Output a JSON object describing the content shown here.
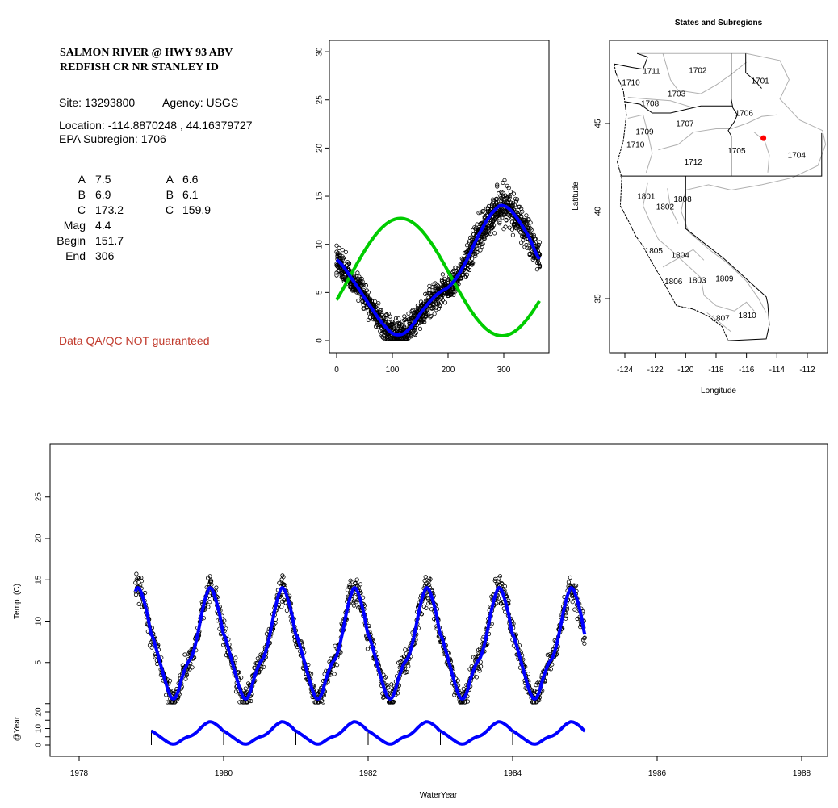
{
  "site_info": {
    "title_line1": "SALMON RIVER @ HWY 93 ABV",
    "title_line2": "REDFISH CR NR STANLEY ID",
    "site": "Site: 13293800",
    "agency": "Agency: USGS",
    "location": "Location: -114.8870248 , 44.16379727",
    "subregion": "EPA Subregion: 1706",
    "params_left": [
      {
        "label": "A",
        "value": "7.5"
      },
      {
        "label": "B",
        "value": "6.9"
      },
      {
        "label": "C",
        "value": "173.2"
      },
      {
        "label": "Mag",
        "value": "4.4"
      },
      {
        "label": "Begin",
        "value": "151.7"
      },
      {
        "label": "End",
        "value": "306"
      }
    ],
    "params_right": [
      {
        "label": "A",
        "value": "6.6"
      },
      {
        "label": "B",
        "value": "6.1"
      },
      {
        "label": "C",
        "value": "159.9"
      }
    ],
    "qa_note": "Data QA/QC NOT guaranteed",
    "qa_color": "#c0392b"
  },
  "chart_data": [
    {
      "id": "seasonal",
      "type": "scatter",
      "title": "",
      "xlabel": "",
      "ylabel": "",
      "xlim": [
        0,
        365
      ],
      "ylim": [
        0,
        31
      ],
      "xticks": [
        "0",
        "100",
        "200",
        "300"
      ],
      "yticks": [
        "0",
        "5",
        "10",
        "15",
        "20",
        "25",
        "30"
      ],
      "grid": false,
      "point_style": "open-circle black",
      "smooth_curve": {
        "color": "#0000ff",
        "day": [
          0,
          30,
          60,
          90,
          110,
          130,
          155,
          180,
          205,
          230,
          260,
          285,
          300,
          320,
          345,
          365
        ],
        "temp": [
          8.4,
          6.2,
          3.6,
          1.3,
          0.6,
          1.2,
          3.2,
          4.8,
          5.8,
          8.0,
          11.5,
          13.6,
          14.0,
          13.0,
          10.8,
          8.4
        ]
      },
      "sine_fit": {
        "color": "#00cc00",
        "mean": 6.6,
        "amplitude": 6.1,
        "peak_day": 297
      }
    },
    {
      "id": "map",
      "type": "map",
      "title": "States and Subregions",
      "xlabel": "Longitude",
      "ylabel": "Latitude",
      "xlim": [
        -125,
        -110.7
      ],
      "ylim": [
        32.2,
        49.8
      ],
      "xticks": [
        "-124",
        "-122",
        "-120",
        "-118",
        "-116",
        "-114",
        "-112"
      ],
      "yticks": [
        "35",
        "40",
        "45"
      ],
      "site_point": {
        "lon": -114.887,
        "lat": 44.164,
        "color": "#ff0000"
      },
      "regions": [
        {
          "name": "1711",
          "lon": -122.25,
          "lat": 48.0
        },
        {
          "name": "1710",
          "lon": -123.6,
          "lat": 47.35
        },
        {
          "name": "1702",
          "lon": -119.2,
          "lat": 48.05
        },
        {
          "name": "1701",
          "lon": -115.1,
          "lat": 47.45
        },
        {
          "name": "1703",
          "lon": -120.6,
          "lat": 46.7
        },
        {
          "name": "1708",
          "lon": -122.35,
          "lat": 46.15
        },
        {
          "name": "1706",
          "lon": -116.15,
          "lat": 45.6
        },
        {
          "name": "1707",
          "lon": -120.05,
          "lat": 45.0
        },
        {
          "name": "1709",
          "lon": -122.7,
          "lat": 44.55
        },
        {
          "name": "1710",
          "lon": -123.3,
          "lat": 43.8
        },
        {
          "name": "1705",
          "lon": -116.65,
          "lat": 43.45
        },
        {
          "name": "1704",
          "lon": -112.7,
          "lat": 43.2
        },
        {
          "name": "1712",
          "lon": -119.5,
          "lat": 42.8
        },
        {
          "name": "1801",
          "lon": -122.6,
          "lat": 40.85
        },
        {
          "name": "1808",
          "lon": -120.2,
          "lat": 40.7
        },
        {
          "name": "1802",
          "lon": -121.35,
          "lat": 40.25
        },
        {
          "name": "1805",
          "lon": -122.1,
          "lat": 37.75
        },
        {
          "name": "1804",
          "lon": -120.35,
          "lat": 37.5
        },
        {
          "name": "1806",
          "lon": -120.8,
          "lat": 36.0
        },
        {
          "name": "1803",
          "lon": -119.25,
          "lat": 36.05
        },
        {
          "name": "1809",
          "lon": -117.45,
          "lat": 36.15
        },
        {
          "name": "1807",
          "lon": -117.7,
          "lat": 33.9
        },
        {
          "name": "1810",
          "lon": -115.95,
          "lat": 34.05
        }
      ]
    },
    {
      "id": "timeseries",
      "type": "scatter",
      "xlabel": "WaterYear",
      "ylabel": "Temp. (C)",
      "ylabel_lower": "@Year",
      "xlim": [
        1977.6,
        1988.4
      ],
      "xticks": [
        "1978",
        "1980",
        "1982",
        "1984",
        "1986",
        "1988"
      ],
      "yticks": [
        "5",
        "10",
        "15",
        "20",
        "25"
      ],
      "yticks_lower": [
        "0",
        "10",
        "20"
      ],
      "data_range": [
        1978.78,
        1985.0
      ],
      "year_starts": [
        1979,
        1980,
        1981,
        1982,
        1983,
        1984,
        1985
      ],
      "line_color": "#0000ff"
    }
  ]
}
